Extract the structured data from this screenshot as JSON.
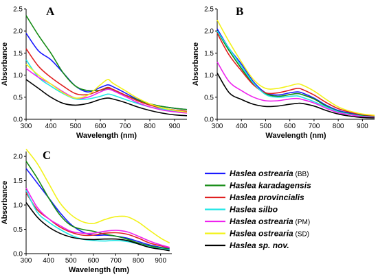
{
  "legend": [
    {
      "name": "Haslea ostrearia",
      "code": "(BB)",
      "color": "#1a1aff"
    },
    {
      "name": "Haslea karadagensis",
      "code": "",
      "color": "#138a13"
    },
    {
      "name": "Haslea provincialis",
      "code": "",
      "color": "#e02020"
    },
    {
      "name": "Haslea silbo",
      "code": "",
      "color": "#22e6e6"
    },
    {
      "name": "Haslea ostrearia",
      "code": "(PM)",
      "color": "#ee22ee"
    },
    {
      "name": "Haslea ostrearia",
      "code": "(SD)",
      "color": "#f2f21a"
    },
    {
      "name": "Haslea sp. nov.",
      "code": "",
      "color": "#000000"
    }
  ],
  "chart_data": [
    {
      "type": "line",
      "panel": "A",
      "xlabel": "Wavelength (nm)",
      "ylabel": "Absorbance",
      "xlim": [
        300,
        950
      ],
      "ylim": [
        0,
        2.5
      ],
      "xticks": [
        "300",
        "400",
        "500",
        "600",
        "700",
        "800",
        "900"
      ],
      "yticks": [
        "0.0",
        "0.5",
        "1.0",
        "1.5",
        "2.0",
        "2.5"
      ],
      "x": [
        300,
        350,
        400,
        450,
        500,
        550,
        600,
        630,
        650,
        700,
        750,
        800,
        850,
        900,
        950
      ],
      "series": [
        {
          "name": "Haslea ostrearia (BB)",
          "color": "#1a1aff",
          "values": [
            1.95,
            1.55,
            1.35,
            1.05,
            0.75,
            0.62,
            0.72,
            0.78,
            0.74,
            0.6,
            0.45,
            0.35,
            0.29,
            0.25,
            0.22
          ]
        },
        {
          "name": "Haslea karadagensis",
          "color": "#138a13",
          "values": [
            2.35,
            1.9,
            1.5,
            1.05,
            0.75,
            0.65,
            0.66,
            0.7,
            0.66,
            0.55,
            0.44,
            0.35,
            0.29,
            0.25,
            0.22
          ]
        },
        {
          "name": "Haslea provincialis",
          "color": "#e02020",
          "values": [
            1.6,
            1.2,
            0.95,
            0.75,
            0.58,
            0.56,
            0.66,
            0.72,
            0.68,
            0.55,
            0.42,
            0.32,
            0.25,
            0.21,
            0.18
          ]
        },
        {
          "name": "Haslea silbo",
          "color": "#22e6e6",
          "values": [
            1.35,
            0.95,
            0.75,
            0.58,
            0.46,
            0.46,
            0.52,
            0.57,
            0.55,
            0.45,
            0.36,
            0.28,
            0.23,
            0.19,
            0.16
          ]
        },
        {
          "name": "Haslea ostrearia (PM)",
          "color": "#ee22ee",
          "values": [
            1.15,
            0.95,
            0.8,
            0.62,
            0.48,
            0.5,
            0.62,
            0.68,
            0.65,
            0.52,
            0.38,
            0.28,
            0.21,
            0.17,
            0.14
          ]
        },
        {
          "name": "Haslea ostrearia (SD)",
          "color": "#f2f21a",
          "values": [
            1.25,
            1.0,
            0.8,
            0.6,
            0.48,
            0.55,
            0.78,
            0.9,
            0.82,
            0.65,
            0.48,
            0.35,
            0.26,
            0.2,
            0.16
          ]
        },
        {
          "name": "Haslea sp. nov.",
          "color": "#000000",
          "values": [
            0.9,
            0.7,
            0.5,
            0.36,
            0.32,
            0.36,
            0.45,
            0.48,
            0.46,
            0.38,
            0.28,
            0.2,
            0.14,
            0.1,
            0.08
          ]
        }
      ]
    },
    {
      "type": "line",
      "panel": "B",
      "xlabel": "Wavelength (nm)",
      "ylabel": "Absorbance",
      "xlim": [
        300,
        950
      ],
      "ylim": [
        0,
        2.5
      ],
      "xticks": [
        "300",
        "400",
        "500",
        "600",
        "700",
        "800",
        "900"
      ],
      "yticks": [
        "0.0",
        "0.5",
        "1.0",
        "1.5",
        "2.0",
        "2.5"
      ],
      "x": [
        300,
        350,
        400,
        450,
        500,
        550,
        600,
        630,
        650,
        700,
        750,
        800,
        850,
        900,
        950
      ],
      "series": [
        {
          "name": "Haslea ostrearia (BB)",
          "color": "#1a1aff",
          "values": [
            2.05,
            1.6,
            1.25,
            0.85,
            0.6,
            0.55,
            0.6,
            0.62,
            0.6,
            0.48,
            0.32,
            0.2,
            0.14,
            0.1,
            0.07
          ]
        },
        {
          "name": "Haslea karadagensis",
          "color": "#138a13",
          "values": [
            2.0,
            1.55,
            1.15,
            0.8,
            0.58,
            0.52,
            0.56,
            0.58,
            0.56,
            0.46,
            0.3,
            0.18,
            0.12,
            0.08,
            0.06
          ]
        },
        {
          "name": "Haslea provincialis",
          "color": "#e02020",
          "values": [
            1.95,
            1.45,
            1.1,
            0.78,
            0.6,
            0.6,
            0.66,
            0.7,
            0.68,
            0.55,
            0.38,
            0.24,
            0.16,
            0.11,
            0.08
          ]
        },
        {
          "name": "Haslea silbo",
          "color": "#22e6e6",
          "values": [
            2.0,
            1.6,
            1.2,
            0.82,
            0.56,
            0.5,
            0.52,
            0.53,
            0.5,
            0.4,
            0.28,
            0.17,
            0.11,
            0.07,
            0.05
          ]
        },
        {
          "name": "Haslea ostrearia (PM)",
          "color": "#ee22ee",
          "values": [
            1.3,
            0.85,
            0.65,
            0.5,
            0.42,
            0.42,
            0.46,
            0.47,
            0.45,
            0.37,
            0.25,
            0.15,
            0.1,
            0.06,
            0.04
          ]
        },
        {
          "name": "Haslea ostrearia (SD)",
          "color": "#f2f21a",
          "values": [
            2.25,
            1.75,
            1.3,
            0.9,
            0.7,
            0.7,
            0.76,
            0.8,
            0.78,
            0.64,
            0.45,
            0.28,
            0.18,
            0.12,
            0.09
          ]
        },
        {
          "name": "Haslea sp. nov.",
          "color": "#000000",
          "values": [
            1.05,
            0.6,
            0.45,
            0.34,
            0.29,
            0.3,
            0.34,
            0.36,
            0.36,
            0.3,
            0.2,
            0.12,
            0.07,
            0.04,
            0.03
          ]
        }
      ]
    },
    {
      "type": "line",
      "panel": "C",
      "xlabel": "Wavelength (nm)",
      "ylabel": "Absorbance",
      "xlim": [
        300,
        950
      ],
      "ylim": [
        0,
        2.1
      ],
      "xticks": [
        "300",
        "400",
        "500",
        "600",
        "700",
        "800",
        "900"
      ],
      "yticks": [
        "0.0",
        "0.5",
        "1.0",
        "1.5",
        "2.0"
      ],
      "x": [
        300,
        350,
        400,
        450,
        500,
        550,
        600,
        650,
        700,
        750,
        800,
        850,
        900,
        940
      ],
      "series": [
        {
          "name": "Haslea ostrearia (BB)",
          "color": "#1a1aff",
          "values": [
            1.75,
            1.45,
            1.15,
            0.85,
            0.6,
            0.45,
            0.38,
            0.38,
            0.36,
            0.32,
            0.25,
            0.18,
            0.13,
            0.1
          ]
        },
        {
          "name": "Haslea karadagensis",
          "color": "#138a13",
          "values": [
            1.9,
            1.55,
            1.15,
            0.8,
            0.58,
            0.5,
            0.46,
            0.4,
            0.36,
            0.3,
            0.22,
            0.16,
            0.12,
            0.09
          ]
        },
        {
          "name": "Haslea provincialis",
          "color": "#e02020",
          "values": [
            1.25,
            0.9,
            0.72,
            0.55,
            0.44,
            0.38,
            0.38,
            0.42,
            0.43,
            0.4,
            0.32,
            0.22,
            0.16,
            0.12
          ]
        },
        {
          "name": "Haslea silbo",
          "color": "#22e6e6",
          "values": [
            1.3,
            0.85,
            0.65,
            0.5,
            0.38,
            0.3,
            0.27,
            0.26,
            0.27,
            0.25,
            0.2,
            0.14,
            0.1,
            0.08
          ]
        },
        {
          "name": "Haslea ostrearia (PM)",
          "color": "#ee22ee",
          "values": [
            1.35,
            0.95,
            0.72,
            0.58,
            0.46,
            0.42,
            0.42,
            0.46,
            0.48,
            0.45,
            0.36,
            0.26,
            0.18,
            0.13
          ]
        },
        {
          "name": "Haslea ostrearia (SD)",
          "color": "#f2f21a",
          "values": [
            2.15,
            1.85,
            1.45,
            1.05,
            0.8,
            0.66,
            0.62,
            0.7,
            0.76,
            0.76,
            0.65,
            0.48,
            0.32,
            0.22
          ]
        },
        {
          "name": "Haslea sp. nov.",
          "color": "#000000",
          "values": [
            1.05,
            0.75,
            0.55,
            0.42,
            0.34,
            0.3,
            0.29,
            0.3,
            0.3,
            0.27,
            0.2,
            0.13,
            0.09,
            0.06
          ]
        }
      ]
    }
  ]
}
